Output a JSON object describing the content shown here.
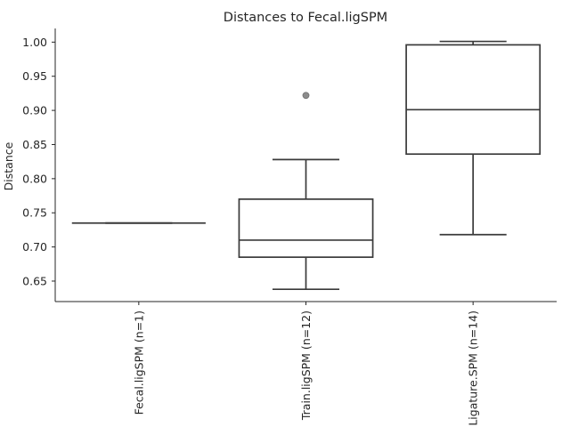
{
  "chart_data": {
    "type": "box",
    "title": "Distances to Fecal.ligSPM",
    "xlabel": "",
    "ylabel": "Distance",
    "ylim": [
      0.62,
      1.02
    ],
    "yticks": [
      0.65,
      0.7,
      0.75,
      0.8,
      0.85,
      0.9,
      0.95,
      1.0
    ],
    "ytick_labels": [
      "0.65",
      "0.70",
      "0.75",
      "0.80",
      "0.85",
      "0.90",
      "0.95",
      "1.00"
    ],
    "grid": false,
    "box_color": "#ffffff",
    "line_color": "#3a3a3a",
    "outlier_color": "#8c8c8c",
    "categories": [
      "Fecal.ligSPM (n=1)",
      "Train.ligSPM (n=12)",
      "Ligature.SPM (n=14)"
    ],
    "boxes": [
      {
        "label": "Fecal.ligSPM (n=1)",
        "whisker_low": 0.735,
        "q1": 0.735,
        "median": 0.735,
        "q3": 0.735,
        "whisker_high": 0.735,
        "outliers": []
      },
      {
        "label": "Train.ligSPM (n=12)",
        "whisker_low": 0.638,
        "q1": 0.685,
        "median": 0.71,
        "q3": 0.77,
        "whisker_high": 0.828,
        "outliers": [
          0.922
        ]
      },
      {
        "label": "Ligature.SPM (n=14)",
        "whisker_low": 0.718,
        "q1": 0.836,
        "median": 0.901,
        "q3": 0.996,
        "whisker_high": 1.001,
        "outliers": []
      }
    ]
  }
}
